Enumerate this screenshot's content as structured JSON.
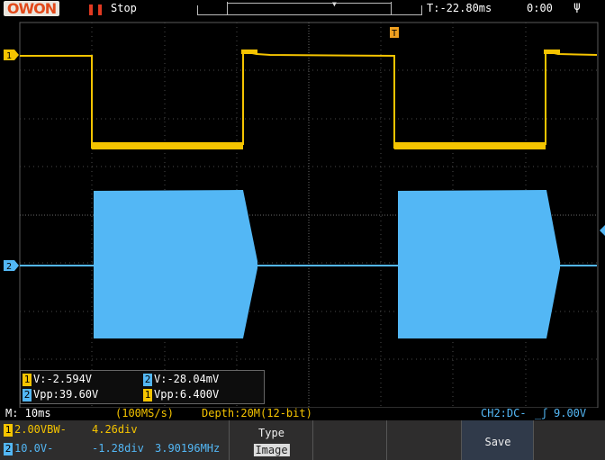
{
  "header": {
    "brand": "OWON",
    "run_icon": "pause-icon",
    "run_state": "Stop",
    "trigger_position": "T:-22.80ms",
    "clock": "0:00",
    "usb_icon": "usb-icon"
  },
  "colors": {
    "ch1": "#f5c400",
    "ch2": "#53b7f5",
    "grid": "#5a5a5a",
    "trigger_marker": "#f0a020",
    "brand": "#e24a1b",
    "run_state": "#e23a22",
    "status_orange": "#f5c400",
    "status_blue": "#53b7f5"
  },
  "markers": {
    "ch1": "1",
    "ch2": "2",
    "trigger": "T"
  },
  "measurements": [
    {
      "ch": "1",
      "text": "V:-2.594V"
    },
    {
      "ch": "2",
      "text": "V:-28.04mV"
    },
    {
      "ch": "2",
      "text": "Vpp:39.60V"
    },
    {
      "ch": "1",
      "text": "Vpp:6.400V"
    }
  ],
  "status_bar": {
    "timebase": "M: 10ms",
    "sample_rate": "(100MS/s)",
    "depth": "Depth:20M(12-bit)",
    "trigger_info": "CH2:DC-",
    "trigger_edge_icon": "rising-edge-icon",
    "trigger_level": "9.00V"
  },
  "channels": [
    {
      "id": "1",
      "scale": "2.00VBW-",
      "offset": "4.26div",
      "freq": ""
    },
    {
      "id": "2",
      "scale": "10.0V-",
      "offset": "-1.28div",
      "freq": "3.90196MHz"
    }
  ],
  "softkeys": {
    "type_label": "Type",
    "type_value": "Image",
    "save_label": "Save"
  }
}
